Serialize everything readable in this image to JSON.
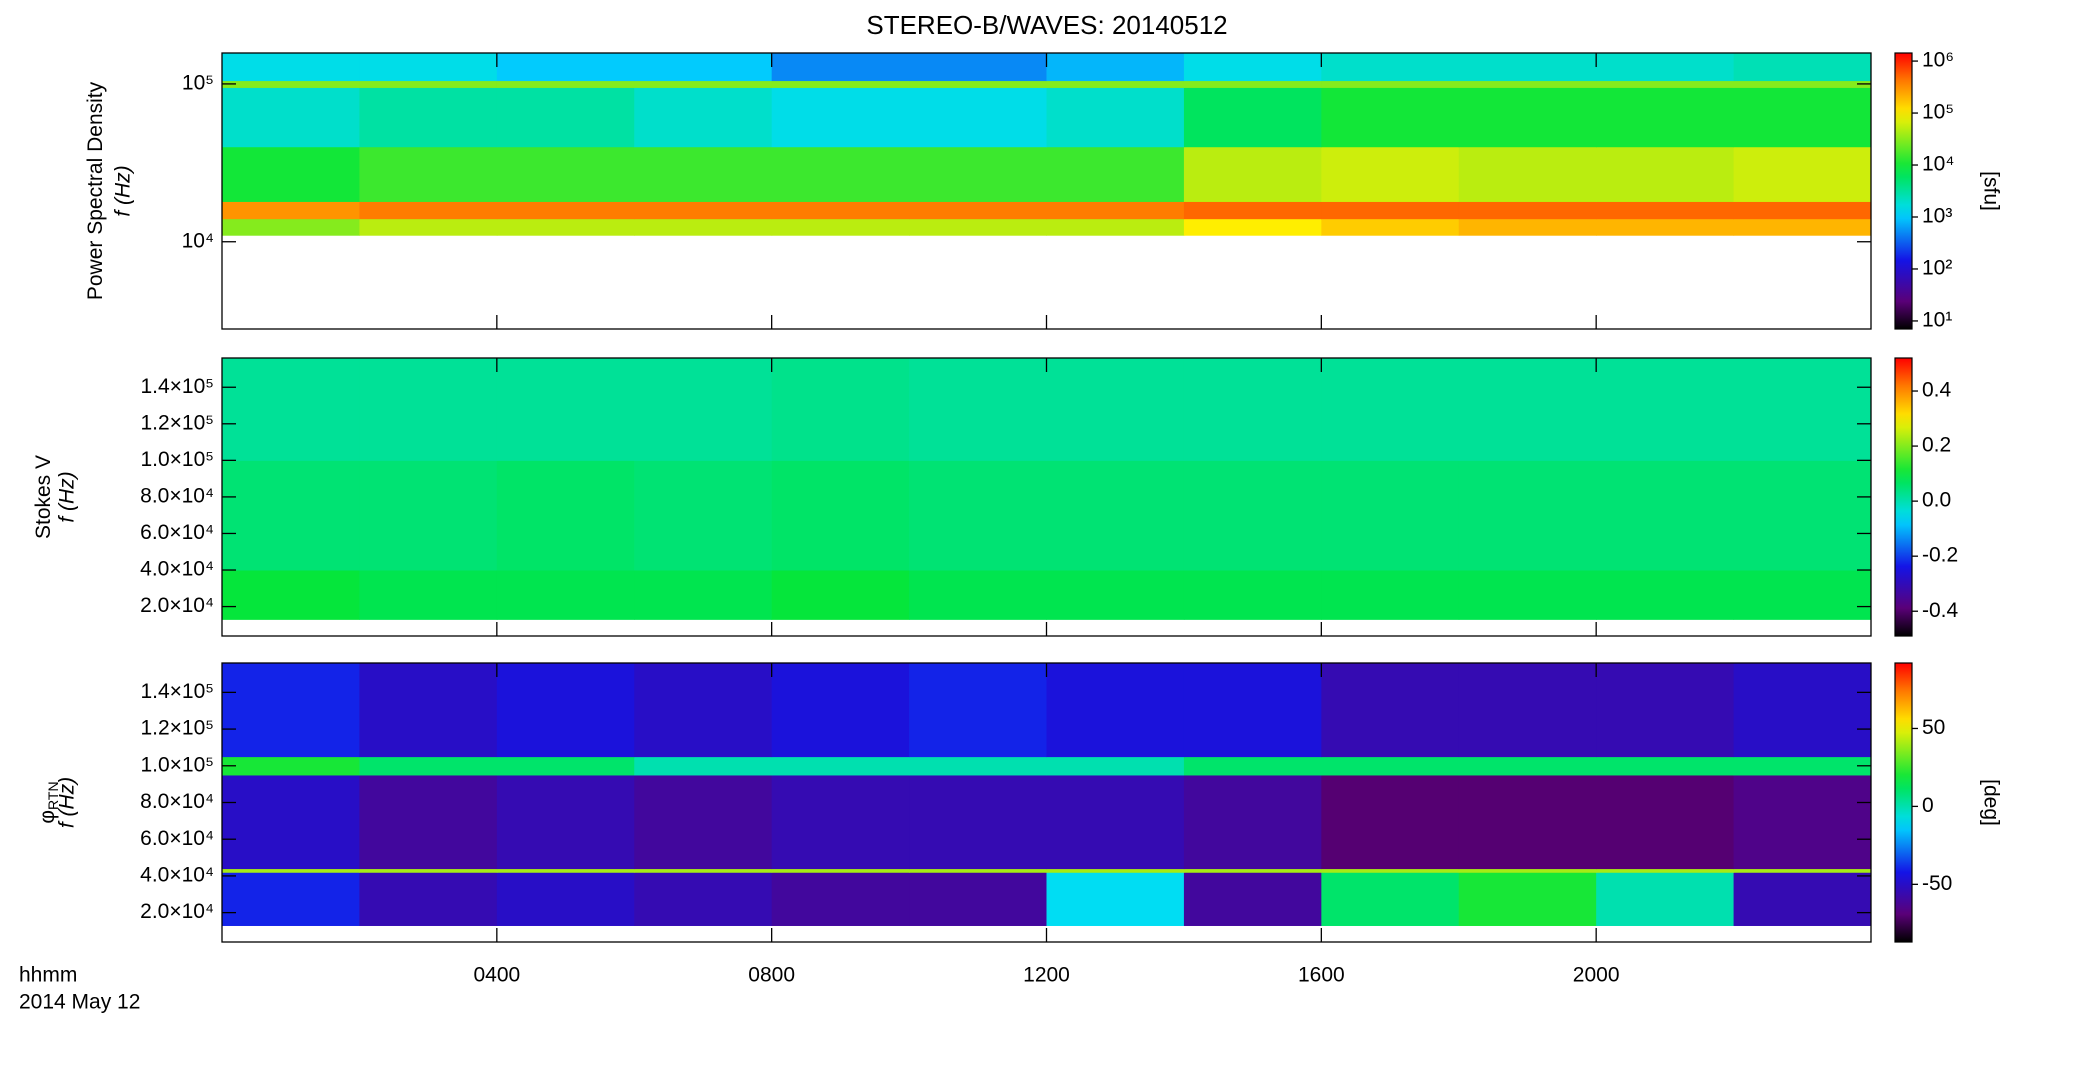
{
  "chart_data": [
    {
      "type": "heatmap",
      "title": "STEREO-B/WAVES: 20140512",
      "quantity": "Power Spectral Density",
      "ylabel": "f (Hz)",
      "xlim": [
        0,
        24
      ],
      "ylim": [
        2800,
        157000
      ],
      "log_y": true,
      "yticks": [
        {
          "value": 10000,
          "label": "10⁴"
        },
        {
          "value": 100000,
          "label": "10⁵"
        }
      ],
      "x_edges": [
        0,
        2,
        4,
        6,
        8,
        10,
        12,
        14,
        16,
        18,
        20,
        22,
        24
      ],
      "y_edges": [
        11000,
        14000,
        18000,
        40000,
        95000,
        105000,
        157000
      ],
      "z": [
        [
          30000,
          50000,
          50000,
          50000,
          50000,
          50000,
          50000,
          100000,
          150000,
          200000,
          200000,
          200000
        ],
        [
          300000,
          400000,
          400000,
          400000,
          400000,
          400000,
          400000,
          500000,
          500000,
          500000,
          500000,
          500000
        ],
        [
          10000,
          15000,
          15000,
          15000,
          15000,
          15000,
          15000,
          50000,
          60000,
          50000,
          50000,
          60000
        ],
        [
          2000,
          3000,
          3000,
          2000,
          1500,
          1500,
          2000,
          6000,
          10000,
          10000,
          10000,
          10000
        ],
        [
          30000,
          30000,
          30000,
          30000,
          30000,
          30000,
          30000,
          30000,
          30000,
          30000,
          30000,
          30000
        ],
        [
          1500,
          1500,
          1000,
          1000,
          500,
          500,
          800,
          1500,
          2000,
          2000,
          2000,
          2500
        ]
      ],
      "clim": [
        7,
        1430000
      ],
      "log_color": true,
      "cticks": [
        {
          "value": 10,
          "label": "10¹"
        },
        {
          "value": 100,
          "label": "10²"
        },
        {
          "value": 1000,
          "label": "10³"
        },
        {
          "value": 10000,
          "label": "10⁴"
        },
        {
          "value": 100000,
          "label": "10⁵"
        },
        {
          "value": 1000000,
          "label": "10⁶"
        }
      ],
      "clabel": "[sfu]"
    },
    {
      "type": "heatmap",
      "quantity": "Stokes V",
      "ylabel": "f (Hz)",
      "xlim": [
        0,
        24
      ],
      "ylim": [
        3900,
        156000
      ],
      "log_y": false,
      "yticks": [
        {
          "value": 20000,
          "label": "2.0×10⁴"
        },
        {
          "value": 40000,
          "label": "4.0×10⁴"
        },
        {
          "value": 60000,
          "label": "6.0×10⁴"
        },
        {
          "value": 80000,
          "label": "8.0×10⁴"
        },
        {
          "value": 100000,
          "label": "1.0×10⁵"
        },
        {
          "value": 120000,
          "label": "1.2×10⁵"
        },
        {
          "value": 140000,
          "label": "1.4×10⁵"
        }
      ],
      "x_edges": [
        0,
        2,
        4,
        6,
        8,
        10,
        12,
        14,
        16,
        18,
        20,
        22,
        24
      ],
      "y_edges": [
        13000,
        40000,
        100000,
        156000
      ],
      "z": [
        [
          0.1,
          0.08,
          0.08,
          0.08,
          0.1,
          0.08,
          0.08,
          0.08,
          0.08,
          0.08,
          0.08,
          0.08
        ],
        [
          0.05,
          0.05,
          0.06,
          0.05,
          0.06,
          0.05,
          0.05,
          0.05,
          0.05,
          0.05,
          0.05,
          0.05
        ],
        [
          0.02,
          0.02,
          0.02,
          0.02,
          0.03,
          0.02,
          0.02,
          0.02,
          0.02,
          0.02,
          0.02,
          0.02
        ]
      ],
      "clim": [
        -0.49,
        0.52
      ],
      "log_color": false,
      "cticks": [
        -0.4,
        -0.2,
        {
          "value": 0,
          "label": "0.0"
        },
        0.2,
        0.4
      ]
    },
    {
      "type": "heatmap",
      "quantity": "φ",
      "quantity_sub": "RTN",
      "ylabel": "f (Hz)",
      "xlim": [
        0,
        24
      ],
      "ylim": [
        4000,
        156000
      ],
      "log_y": false,
      "yticks": [
        {
          "value": 20000,
          "label": "2.0×10⁴"
        },
        {
          "value": 40000,
          "label": "4.0×10⁴"
        },
        {
          "value": 60000,
          "label": "6.0×10⁴"
        },
        {
          "value": 80000,
          "label": "8.0×10⁴"
        },
        {
          "value": 100000,
          "label": "1.0×10⁵"
        },
        {
          "value": 120000,
          "label": "1.2×10⁵"
        },
        {
          "value": 140000,
          "label": "1.4×10⁵"
        }
      ],
      "xticks": [
        {
          "value": 4,
          "label": "0400"
        },
        {
          "value": 8,
          "label": "0800"
        },
        {
          "value": 12,
          "label": "1200"
        },
        {
          "value": 16,
          "label": "1600"
        },
        {
          "value": 20,
          "label": "2000"
        }
      ],
      "xlabel": "hhmm",
      "date_label": "2014 May 12",
      "x_edges": [
        0,
        2,
        4,
        6,
        8,
        10,
        12,
        14,
        16,
        18,
        20,
        22,
        24
      ],
      "y_edges": [
        13000,
        42000,
        44000,
        95000,
        105000,
        156000
      ],
      "z": [
        [
          -40,
          -55,
          -50,
          -55,
          -60,
          -60,
          -10,
          -60,
          10,
          20,
          0,
          -55
        ],
        [
          40,
          40,
          40,
          40,
          40,
          40,
          40,
          40,
          40,
          40,
          40,
          40
        ],
        [
          -50,
          -60,
          -55,
          -60,
          -55,
          -55,
          -55,
          -60,
          -70,
          -70,
          -70,
          -65
        ],
        [
          20,
          10,
          10,
          0,
          0,
          0,
          0,
          10,
          10,
          10,
          10,
          10
        ],
        [
          -40,
          -50,
          -45,
          -50,
          -45,
          -40,
          -45,
          -45,
          -55,
          -55,
          -55,
          -50
        ]
      ],
      "clim": [
        -87,
        92
      ],
      "log_color": false,
      "cticks": [
        -50,
        0,
        50
      ],
      "clabel": "[deg]"
    }
  ]
}
